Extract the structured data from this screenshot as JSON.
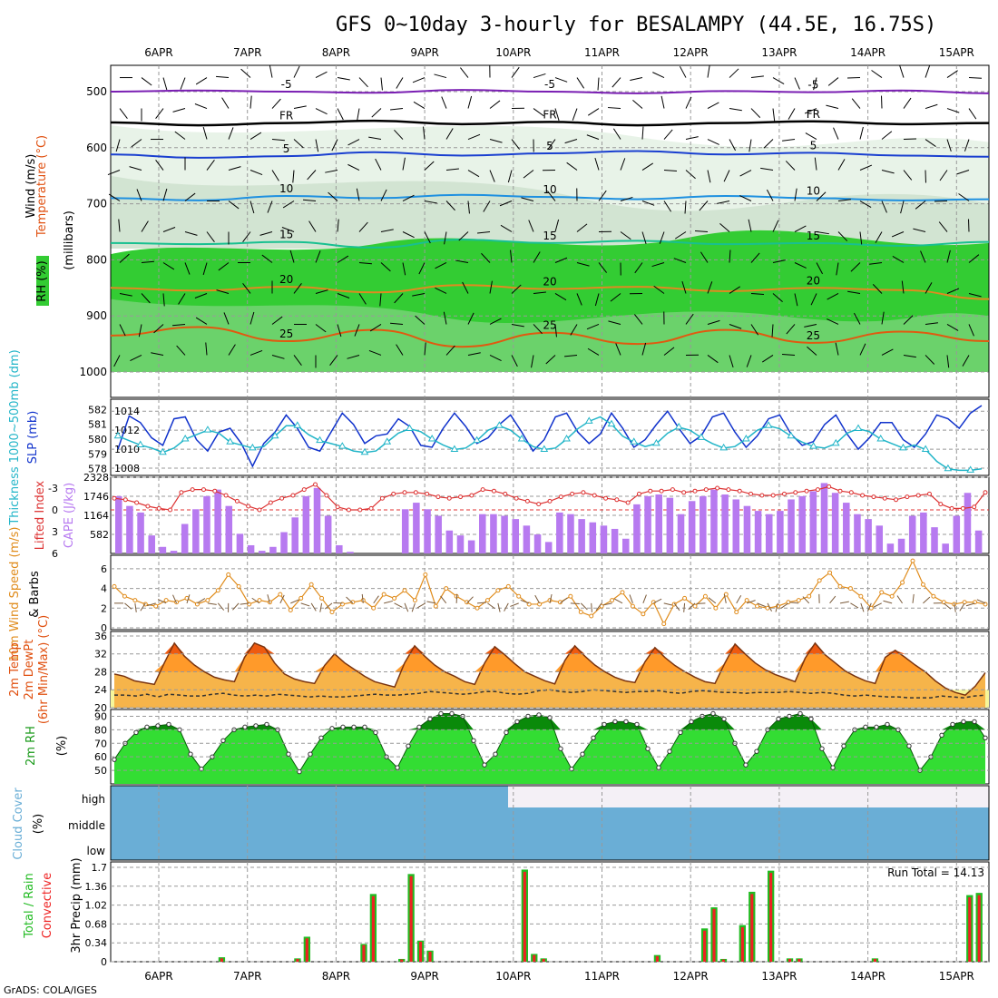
{
  "title": "GFS 0~10day 3-hourly for BESALAMPY (44.5E, 16.75S)",
  "footer": "GrADS: COLA/IGES",
  "dates": [
    "6APR",
    "7APR",
    "8APR",
    "9APR",
    "10APR",
    "11APR",
    "12APR",
    "13APR",
    "14APR",
    "15APR"
  ],
  "colors": {
    "rh": "#33cc33",
    "rh_dark": "#0a8a0a",
    "temp": "#e05010",
    "precip_total": "#22bb22",
    "precip_conv": "#ee2222",
    "cloud": "#6aaed6",
    "cape": "#b77af0",
    "wind10": "#e08c1c",
    "slp": "#1133cc",
    "thick": "#22b5c8",
    "li": "#dd3333"
  },
  "chart_data": [
    {
      "panel": "upper-air",
      "type": "contour",
      "ylabel": "(millibars)",
      "legend_labels": [
        "Wind (m/s)",
        "Temperature (°C)",
        "RH (%)"
      ],
      "ylim": [
        1000,
        450
      ],
      "yticks": [
        500,
        600,
        700,
        800,
        900,
        1000
      ],
      "temp_contours": [
        {
          "label": "-5",
          "p": [
            500,
            498,
            500,
            502,
            497,
            500,
            503,
            499,
            501,
            498,
            503
          ]
        },
        {
          "label": "FR",
          "p": [
            555,
            560,
            556,
            552,
            558,
            554,
            560,
            556,
            553,
            558,
            556
          ]
        },
        {
          "label": "5",
          "p": [
            612,
            618,
            615,
            608,
            614,
            610,
            606,
            612,
            609,
            614,
            616
          ]
        },
        {
          "label": "10",
          "p": [
            690,
            694,
            686,
            690,
            684,
            688,
            692,
            686,
            690,
            694,
            692
          ]
        },
        {
          "label": "15",
          "p": [
            770,
            772,
            768,
            778,
            764,
            770,
            766,
            772,
            770,
            775,
            768
          ]
        },
        {
          "label": "20",
          "p": [
            850,
            855,
            848,
            858,
            845,
            852,
            848,
            856,
            850,
            854,
            870
          ]
        },
        {
          "label": "25",
          "p": [
            935,
            920,
            945,
            925,
            955,
            930,
            950,
            925,
            948,
            928,
            945
          ]
        }
      ]
    },
    {
      "panel": "slp-thickness",
      "type": "line",
      "ylabels": [
        "Thickness 1000~500mb (dm)",
        "SLP (mb)"
      ],
      "left_ticks": [
        "582",
        "581",
        "580",
        "579",
        "578"
      ],
      "right_ticks": [
        "1014",
        "1012",
        "1010",
        "1008"
      ],
      "series": [
        {
          "name": "SLP (mb)",
          "values": [
            1010,
            1013.5,
            1012.8,
            1011.2,
            1010.4,
            1013.2,
            1013.4,
            1011,
            1009.8,
            1011.8,
            1012.2,
            1010.6,
            1008.2,
            1010.6,
            1011.8,
            1013.6,
            1012.2,
            1010.2,
            1009.8,
            1011.8,
            1013.8,
            1012.6,
            1010.6,
            1011.4,
            1011.6,
            1013.2,
            1012.4,
            1010.4,
            1010.2,
            1012.2,
            1013.8,
            1012.4,
            1010.6,
            1011.2,
            1012.6,
            1013.6,
            1011.8,
            1009.8,
            1011,
            1013.4,
            1013.8,
            1011.8,
            1010.6,
            1011.6,
            1013.8,
            1012.2,
            1010.2,
            1011,
            1012.6,
            1014,
            1012.2,
            1010.6,
            1011.4,
            1013.4,
            1013.8,
            1011.8,
            1010.2,
            1011.4,
            1013.2,
            1013.6,
            1011.6,
            1010.4,
            1010.8,
            1012.6,
            1013.6,
            1011.6,
            1010,
            1011.2,
            1012.8,
            1012.8,
            1011,
            1010.2,
            1011.6,
            1013.6,
            1013.2,
            1012.2,
            1013.8,
            1014.6
          ]
        },
        {
          "name": "Thickness (dm)",
          "values": [
            580.2,
            579.9,
            579.6,
            579.4,
            579.1,
            579.4,
            580.0,
            580.3,
            580.6,
            580.4,
            579.8,
            579.6,
            579.4,
            579.5,
            580.2,
            580.9,
            580.9,
            580.3,
            579.9,
            579.7,
            579.5,
            579.2,
            579.1,
            579.2,
            579.8,
            580.4,
            580.7,
            580.5,
            580.0,
            579.6,
            579.3,
            579.4,
            579.9,
            580.6,
            580.9,
            580.6,
            580.0,
            579.5,
            579.3,
            579.4,
            580.0,
            580.7,
            581.2,
            581.5,
            581.0,
            580.2,
            579.8,
            579.5,
            579.7,
            580.4,
            580.8,
            580.6,
            580.1,
            579.7,
            579.4,
            579.5,
            580.0,
            580.6,
            580.9,
            580.7,
            580.2,
            579.8,
            579.5,
            579.4,
            579.7,
            580.4,
            580.7,
            580.5,
            580.0,
            579.7,
            579.4,
            579.6,
            579.3,
            578.5,
            578.0,
            577.9,
            577.9,
            578.0
          ]
        }
      ]
    },
    {
      "panel": "cape-li",
      "type": "bar",
      "ylabels": [
        "Lifted Index",
        "CAPE (J/kg)"
      ],
      "left_ticks": [
        "-3",
        "0",
        "3",
        "6"
      ],
      "right_ticks": [
        "2328",
        "1746",
        "1164",
        "582"
      ],
      "ylim_cape": [
        0,
        2328
      ],
      "ylim_li": [
        -4.5,
        6
      ],
      "cape": [
        1750,
        1450,
        1250,
        550,
        200,
        80,
        900,
        1350,
        1750,
        1950,
        1450,
        600,
        250,
        80,
        200,
        650,
        1100,
        1750,
        2000,
        1150,
        250,
        50,
        0,
        0,
        0,
        0,
        1350,
        1550,
        1350,
        1150,
        700,
        550,
        400,
        1200,
        1200,
        1150,
        1050,
        850,
        580,
        350,
        1250,
        1200,
        1050,
        950,
        850,
        750,
        450,
        1500,
        1750,
        1800,
        1700,
        1200,
        1600,
        1750,
        1950,
        1800,
        1650,
        1450,
        1300,
        1200,
        1300,
        1650,
        1750,
        1900,
        2150,
        1850,
        1550,
        1200,
        1050,
        850,
        300,
        450,
        1150,
        1250,
        800,
        300,
        1150,
        1850,
        700
      ],
      "li": [
        -1.6,
        -1.4,
        -1.0,
        -0.5,
        -0.2,
        0.0,
        -2.4,
        -2.8,
        -2.8,
        -2.6,
        -2.0,
        -1.2,
        -0.5,
        0.0,
        -1.0,
        -1.6,
        -2.0,
        -2.8,
        -3.5,
        -2.0,
        -0.4,
        0.0,
        0.0,
        -0.2,
        -1.6,
        -2.2,
        -2.4,
        -2.4,
        -2.2,
        -1.8,
        -1.6,
        -1.8,
        -2.0,
        -2.8,
        -2.6,
        -2.2,
        -1.6,
        -1.2,
        -0.8,
        -1.2,
        -1.8,
        -2.2,
        -2.4,
        -2.0,
        -1.6,
        -1.4,
        -1.0,
        -2.2,
        -2.6,
        -2.6,
        -2.8,
        -2.4,
        -2.6,
        -2.8,
        -3.0,
        -2.8,
        -2.6,
        -2.2,
        -2.0,
        -2.0,
        -2.2,
        -2.4,
        -2.6,
        -2.8,
        -3.2,
        -2.6,
        -2.4,
        -2.0,
        -1.8,
        -1.6,
        -1.4,
        -1.8,
        -2.0,
        -2.2,
        -0.8,
        -0.2,
        -0.2,
        -0.4,
        -2.4
      ]
    },
    {
      "panel": "wind10",
      "type": "line",
      "ylabels": [
        "10m Wind Speed (m/s)",
        "& Barbs"
      ],
      "left_ticks": [
        "6",
        "4",
        "2",
        "0"
      ],
      "ylim": [
        0,
        7
      ],
      "values": [
        4.2,
        3.2,
        2.8,
        2.4,
        2.2,
        2.8,
        2.6,
        3.0,
        2.4,
        2.8,
        3.8,
        5.4,
        4.2,
        2.4,
        2.8,
        2.6,
        3.4,
        1.8,
        3.0,
        4.4,
        3.0,
        1.6,
        2.4,
        2.6,
        2.8,
        2.0,
        3.4,
        3.0,
        3.8,
        2.8,
        5.4,
        2.2,
        4.0,
        3.2,
        2.6,
        2.0,
        2.8,
        3.8,
        4.2,
        3.2,
        2.4,
        2.4,
        2.8,
        2.6,
        3.2,
        1.6,
        1.2,
        2.2,
        2.8,
        3.6,
        2.2,
        1.4,
        2.6,
        0.4,
        2.4,
        3.0,
        2.2,
        3.2,
        2.0,
        3.4,
        1.6,
        2.8,
        2.2,
        2.0,
        2.2,
        2.6,
        2.8,
        3.2,
        4.8,
        5.6,
        4.2,
        4.0,
        3.2,
        2.0,
        3.6,
        3.2,
        4.6,
        6.8,
        4.4,
        3.2,
        2.6,
        2.4,
        2.6,
        2.6,
        2.4
      ]
    },
    {
      "panel": "temp2m",
      "type": "area",
      "ylabels": [
        "2m Temp",
        "2m DewPt",
        "(6hr Min/Max) (°C)"
      ],
      "left_ticks": [
        "36",
        "32",
        "28",
        "24",
        "20"
      ],
      "ylim": [
        20,
        37
      ],
      "temp": [
        27.5,
        27,
        26,
        25.6,
        25.2,
        30,
        34.4,
        31.5,
        29.5,
        28,
        26.8,
        26.2,
        25.8,
        31.2,
        34.4,
        33.5,
        30,
        27.5,
        26.4,
        25.8,
        25.4,
        29.4,
        32,
        30,
        28.5,
        27,
        25.8,
        25.2,
        24.6,
        30,
        33.8,
        31.5,
        29.5,
        28,
        27,
        25.8,
        25.2,
        30,
        33.6,
        31.8,
        29.8,
        28,
        27,
        26,
        25.3,
        30.5,
        33.8,
        31.5,
        29.5,
        28,
        26.8,
        26,
        25.6,
        30.2,
        33.4,
        31.2,
        29.4,
        28,
        26.8,
        25.8,
        25.4,
        30,
        34.2,
        32,
        30,
        28.5,
        27.4,
        26.6,
        25.8,
        31,
        34.4,
        31.8,
        30,
        28.2,
        27,
        26,
        25.4,
        31.2,
        32.8,
        31.2,
        29.5,
        28,
        26,
        24.4,
        23.4,
        22.8,
        24.8,
        27.8
      ],
      "dewpt": [
        22.8,
        22.8,
        22.6,
        23.0,
        22.4,
        23.0,
        22.8,
        22.6,
        22.6,
        23.0,
        23.2,
        22.8,
        22.6,
        22.8,
        22.6,
        23.0,
        22.8,
        22.6,
        22.4,
        22.6,
        22.4,
        22.4,
        22.6,
        22.8,
        23.0,
        22.8,
        22.8,
        23.0,
        23.2,
        23.6,
        23.4,
        23.2,
        23.0,
        23.2,
        23.6,
        23.6,
        23.2,
        23.0,
        23.2,
        23.8,
        24.0,
        23.6,
        23.4,
        23.6,
        24.0,
        23.8,
        23.6,
        23.4,
        23.6,
        23.6,
        23.8,
        23.4,
        23.2,
        23.6,
        23.8,
        23.6,
        23.4,
        23.4,
        23.2,
        23.4,
        23.4,
        23.4,
        23.6,
        23.4,
        23.2,
        23.4,
        23.2,
        22.8,
        22.6,
        22.8,
        22.6,
        22.4,
        22.4,
        22.2,
        22.2,
        22.2,
        22.6,
        22.4,
        22.2,
        22.6,
        22.8
      ]
    },
    {
      "panel": "rh2m",
      "type": "area",
      "ylabels": [
        "2m RH",
        "(%)"
      ],
      "left_ticks": [
        "90",
        "80",
        "70",
        "60",
        "50"
      ],
      "ylim": [
        40,
        95
      ],
      "values": [
        58,
        70,
        78,
        82,
        83,
        84,
        80,
        62,
        51,
        60,
        72,
        80,
        82,
        83,
        84,
        80,
        62,
        49,
        62,
        74,
        81,
        82,
        82,
        82,
        78,
        60,
        52,
        68,
        82,
        88,
        92,
        92,
        90,
        72,
        54,
        62,
        78,
        86,
        90,
        91,
        89,
        66,
        51,
        62,
        74,
        84,
        86,
        86,
        84,
        66,
        52,
        64,
        78,
        86,
        90,
        92,
        88,
        70,
        54,
        64,
        80,
        88,
        90,
        92,
        88,
        66,
        52,
        68,
        80,
        82,
        82,
        84,
        80,
        68,
        50,
        60,
        76,
        84,
        86,
        86,
        74
      ]
    },
    {
      "panel": "cloud",
      "type": "bar",
      "ylabels": [
        "Cloud Cover",
        "(%)"
      ],
      "ticks": [
        "high",
        "middle",
        "low"
      ]
    },
    {
      "panel": "precip",
      "type": "bar",
      "ylabels": [
        "Total / Rain",
        "Convective",
        "3hr Precip (mm)"
      ],
      "left_ticks": [
        "1.7",
        "1.36",
        "1.02",
        "0.68",
        "0.34",
        "0"
      ],
      "ylim": [
        0,
        1.7
      ],
      "run_total_label": "Run Total = 14.13",
      "total": [
        0,
        0,
        0,
        0,
        0,
        0,
        0,
        0,
        0,
        0,
        0,
        0.08,
        0,
        0,
        0,
        0,
        0,
        0,
        0,
        0.06,
        0.45,
        0,
        0,
        0,
        0,
        0,
        0.32,
        1.22,
        0,
        0,
        0.05,
        1.58,
        0.38,
        0.2,
        0,
        0,
        0,
        0,
        0,
        0,
        0,
        0,
        0,
        1.66,
        0.14,
        0.06,
        0,
        0,
        0,
        0,
        0,
        0,
        0,
        0,
        0,
        0,
        0,
        0.12,
        0,
        0,
        0,
        0,
        0.6,
        0.98,
        0.05,
        0,
        0.66,
        1.26,
        0,
        1.64,
        0,
        0.06,
        0.06,
        0,
        0,
        0,
        0,
        0,
        0,
        0,
        0.06,
        0,
        0,
        0,
        0,
        0,
        0,
        0,
        0,
        0,
        1.2,
        1.24
      ],
      "convective": [
        0,
        0,
        0,
        0,
        0,
        0,
        0,
        0,
        0,
        0,
        0,
        0.06,
        0,
        0,
        0,
        0,
        0,
        0,
        0,
        0.05,
        0.42,
        0,
        0,
        0,
        0,
        0,
        0.3,
        1.18,
        0,
        0,
        0.04,
        1.54,
        0.36,
        0.18,
        0,
        0,
        0,
        0,
        0,
        0,
        0,
        0,
        0,
        1.62,
        0.12,
        0.05,
        0,
        0,
        0,
        0,
        0,
        0,
        0,
        0,
        0,
        0,
        0,
        0.1,
        0,
        0,
        0,
        0,
        0.56,
        0.95,
        0.04,
        0,
        0.62,
        1.22,
        0,
        1.6,
        0,
        0.05,
        0.05,
        0,
        0,
        0,
        0,
        0,
        0,
        0,
        0.05,
        0,
        0,
        0,
        0,
        0,
        0,
        0,
        0,
        0,
        1.16,
        1.2
      ]
    }
  ]
}
